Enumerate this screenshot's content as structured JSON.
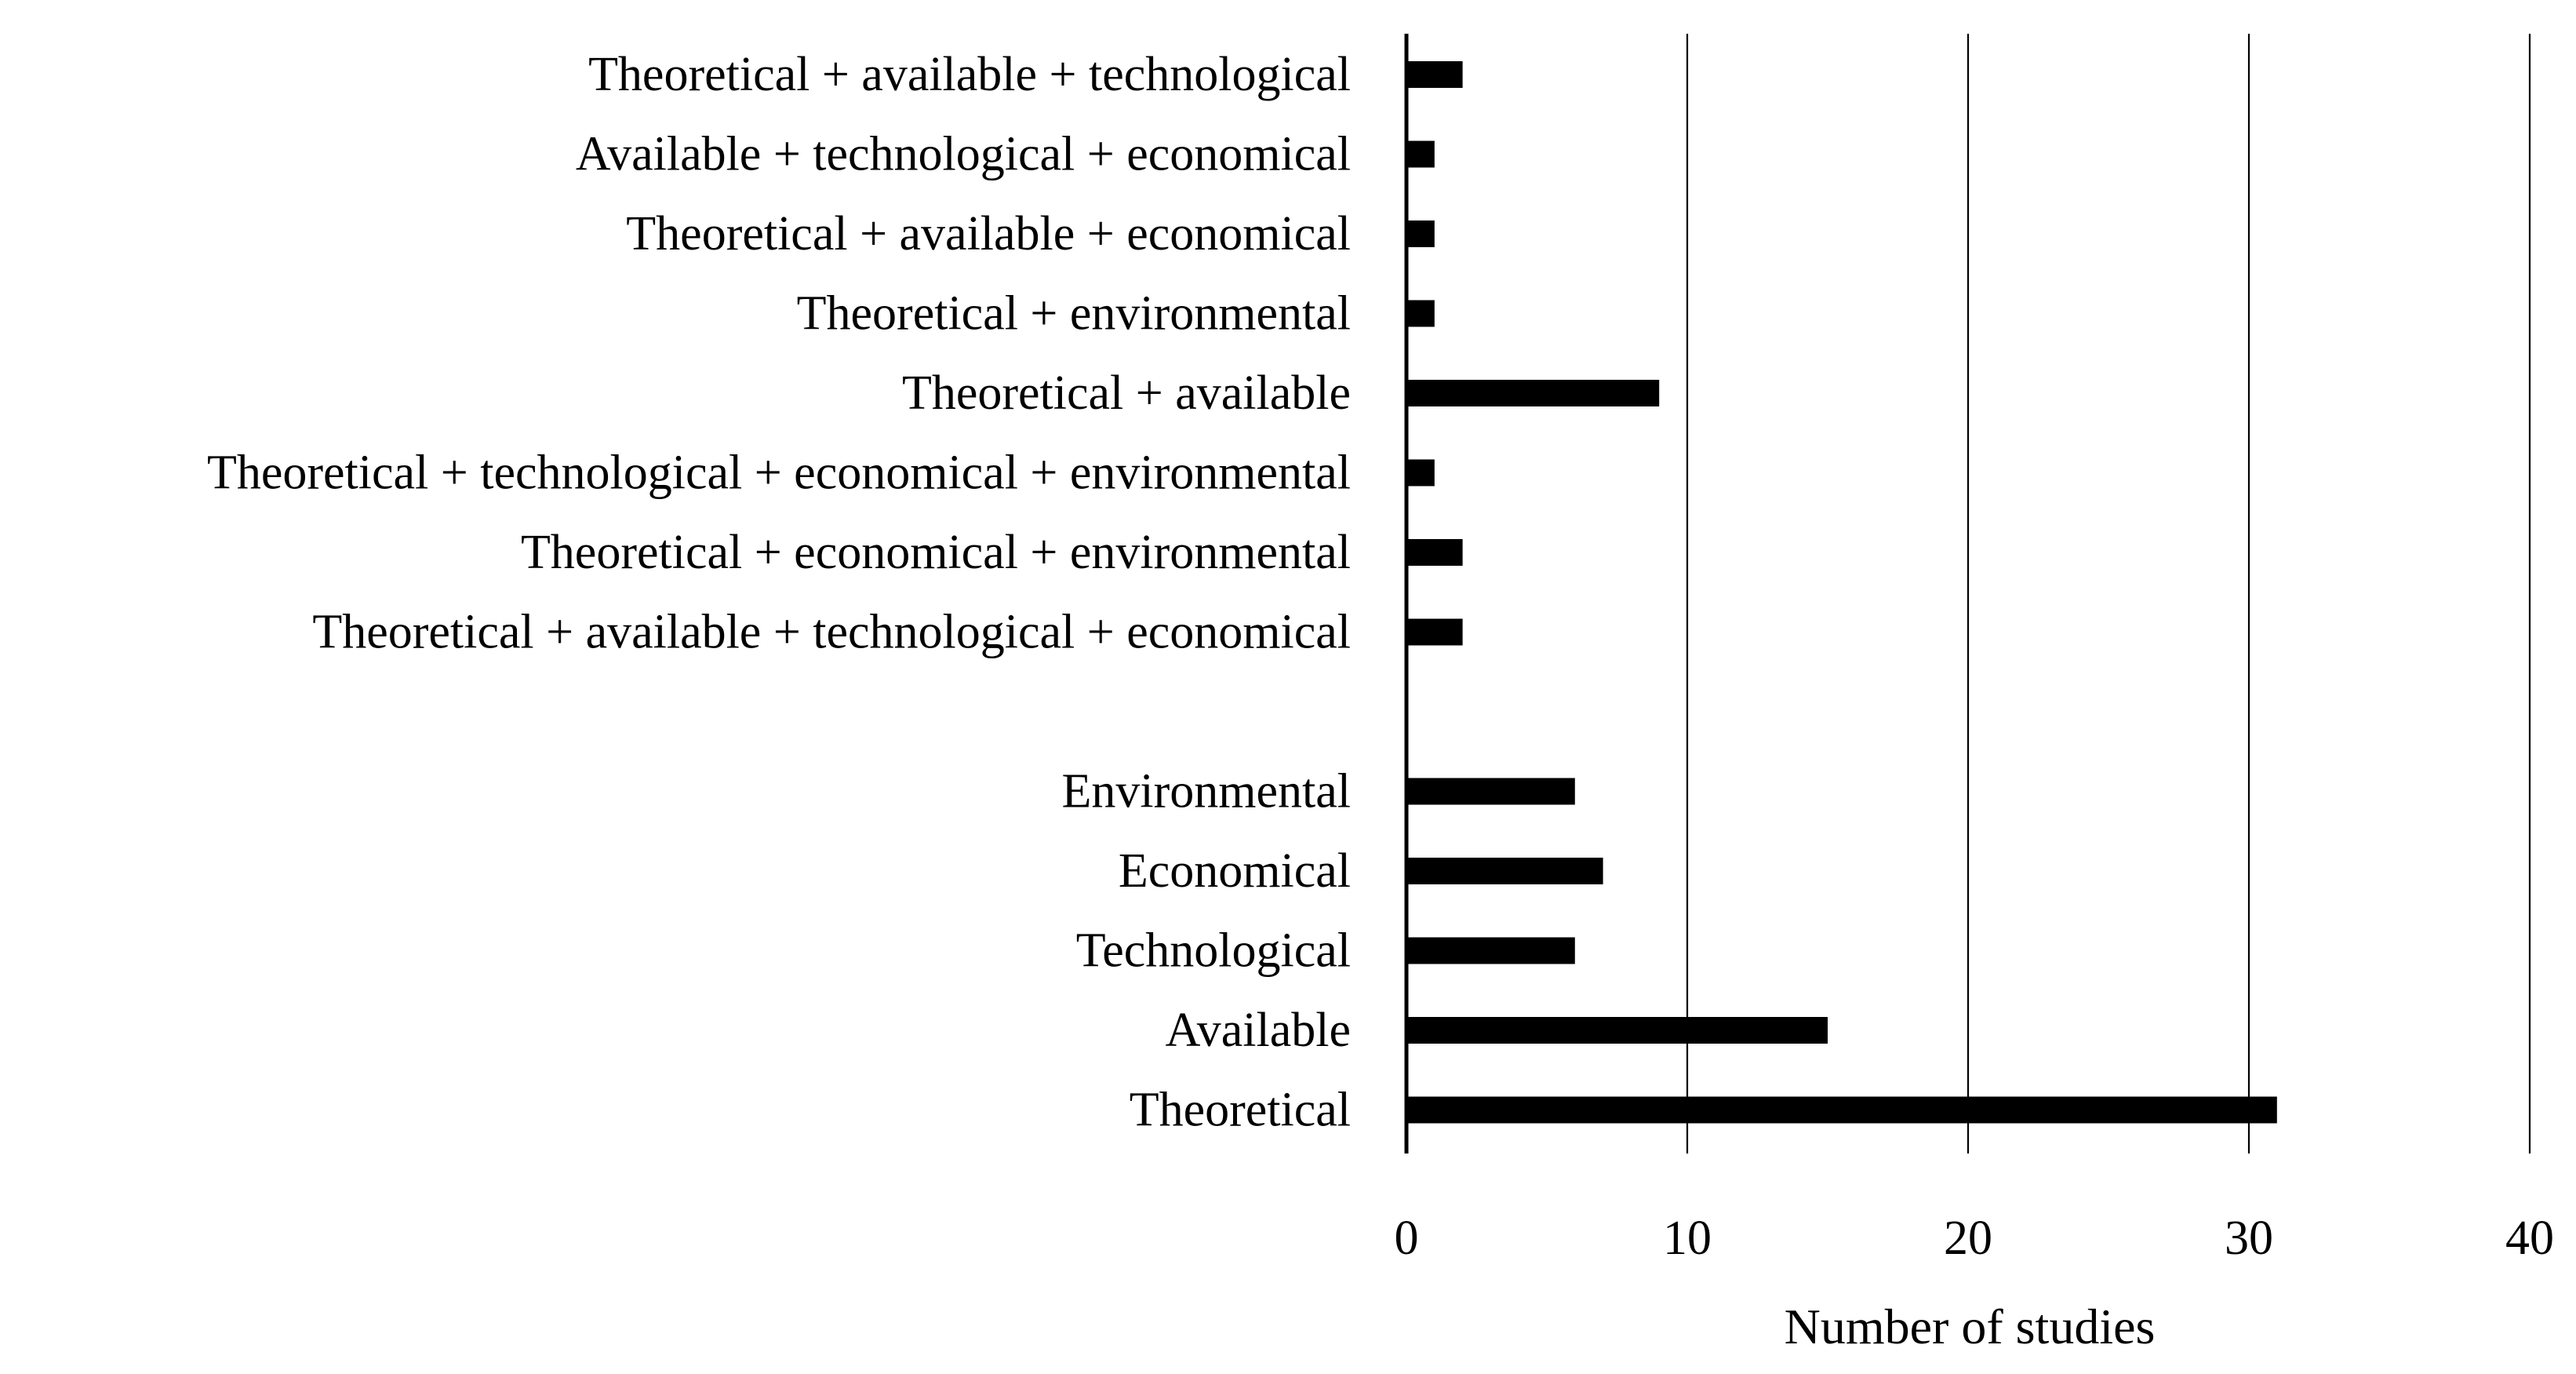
{
  "chart_data": {
    "type": "bar",
    "orientation": "horizontal",
    "title": "",
    "xlabel": "Number of studies",
    "ylabel": "",
    "xlim": [
      0,
      40
    ],
    "xticks": [
      0,
      10,
      20,
      30,
      40
    ],
    "grid": true,
    "legend": "none",
    "bar_color": "#000000",
    "categories": [
      "Theoretical + available + technological",
      "Available + technological + economical",
      "Theoretical + available + economical",
      "Theoretical + environmental",
      "Theoretical + available",
      "Theoretical + technological + economical + environmental",
      "Theoretical + economical + environmental",
      "Theoretical + available + technological + economical",
      "",
      "Environmental",
      "Economical",
      "Technological",
      "Available",
      "Theoretical"
    ],
    "values": [
      2,
      1,
      1,
      1,
      9,
      1,
      2,
      2,
      null,
      6,
      7,
      6,
      15,
      31
    ]
  }
}
